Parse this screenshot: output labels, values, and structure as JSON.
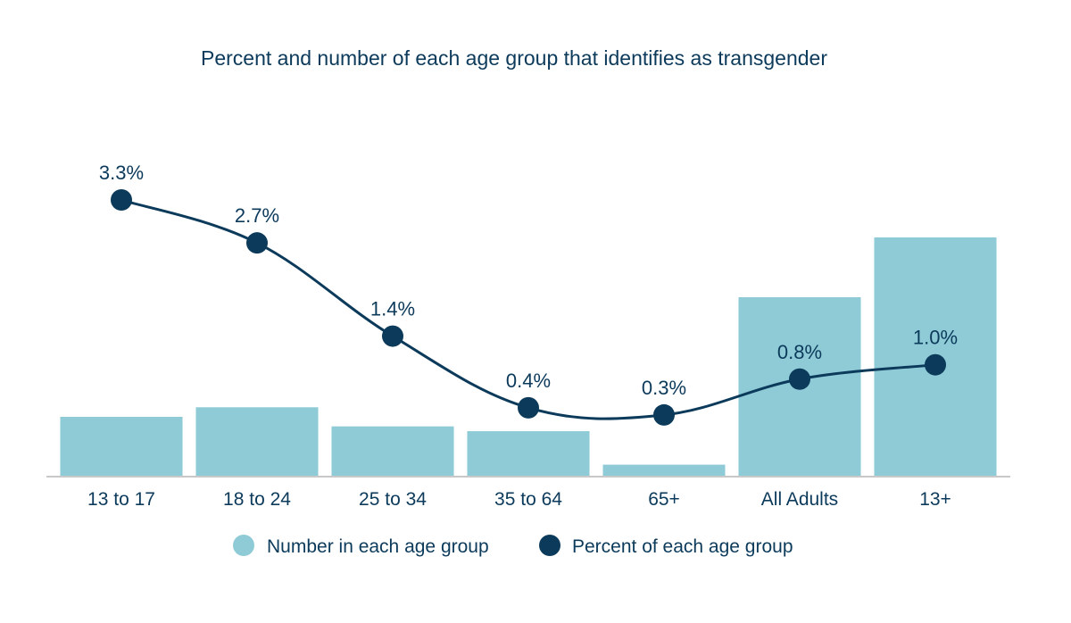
{
  "chart_data": {
    "type": "bar",
    "title": "Percent and number of each age group that identifies as transgender",
    "categories": [
      "13 to 17",
      "18 to 24",
      "25 to 34",
      "35 to 64",
      "65+",
      "All Adults",
      "13+"
    ],
    "series": [
      {
        "name": "Number in each age group",
        "kind": "bar",
        "unit": "relative (unlabeled)",
        "values": [
          0.25,
          0.29,
          0.21,
          0.19,
          0.05,
          0.75,
          1.0
        ]
      },
      {
        "name": "Percent of each age group",
        "kind": "line",
        "unit": "%",
        "values": [
          3.3,
          2.7,
          1.4,
          0.4,
          0.3,
          0.8,
          1.0
        ],
        "labels": [
          "3.3%",
          "2.7%",
          "1.4%",
          "0.4%",
          "0.3%",
          "0.8%",
          "1.0%"
        ]
      }
    ],
    "legend": [
      "Number in each age group",
      "Percent of each age group"
    ],
    "legend_position": "bottom",
    "xlabel": "",
    "ylabel": "",
    "grid": false,
    "colors": {
      "bar": "#8ecbd6",
      "line": "#0c3a5b",
      "axis": "#c8c8c8",
      "text": "#0c3a5b"
    }
  }
}
